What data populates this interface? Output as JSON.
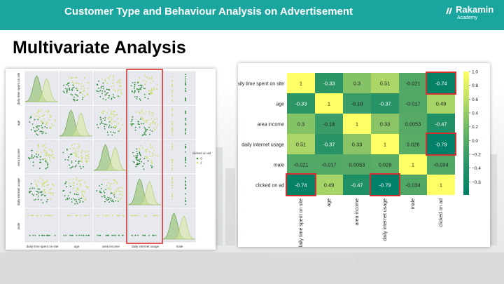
{
  "header": {
    "title": "Customer Type and Behaviour Analysis on Advertisement",
    "logo_name": "Rakamin",
    "logo_sub": "Academy"
  },
  "slide": {
    "title": "Multivariate Analysis"
  },
  "colors": {
    "header": "#1aa59f",
    "highlight": "#d32f2f",
    "pair_green": "#2e8b3a",
    "pair_light": "#c8e06a"
  },
  "pairplot": {
    "variables": [
      "daily time spent on site",
      "age",
      "area income",
      "daily internet usage",
      "male"
    ],
    "legend_title": "clicked on ad",
    "legend_items": [
      "0",
      "1"
    ]
  },
  "chart_data": {
    "type": "heatmap",
    "rows": [
      "daily time spent on site",
      "age",
      "area income",
      "daily internet usage",
      "male",
      "clicked on ad"
    ],
    "columns": [
      "daily time spent on site",
      "age",
      "area income",
      "daily internet usage",
      "male",
      "clicked on ad"
    ],
    "values": [
      [
        1,
        -0.33,
        0.3,
        0.51,
        -0.021,
        -0.74
      ],
      [
        -0.33,
        1,
        -0.18,
        -0.37,
        -0.017,
        0.49
      ],
      [
        0.3,
        -0.18,
        1,
        0.33,
        0.0053,
        -0.47
      ],
      [
        0.51,
        -0.37,
        0.33,
        1,
        0.028,
        -0.79
      ],
      [
        -0.021,
        -0.017,
        0.0053,
        0.028,
        1,
        -0.034
      ],
      [
        -0.74,
        0.49,
        -0.47,
        -0.79,
        -0.034,
        1
      ]
    ],
    "cell_labels": [
      [
        "1",
        "-0.33",
        "0.3",
        "0.51",
        "-0.021",
        "-0.74"
      ],
      [
        "-0.33",
        "1",
        "-0.18",
        "-0.37",
        "-0.017",
        "0.49"
      ],
      [
        "0.3",
        "-0.18",
        "1",
        "0.33",
        "0.0053",
        "-0.47"
      ],
      [
        "0.51",
        "-0.37",
        "0.33",
        "1",
        "0.028",
        "-0.79"
      ],
      [
        "-0.021",
        "-0.017",
        "0.0053",
        "0.028",
        "1",
        "-0.034"
      ],
      [
        "-0.74",
        "0.49",
        "-0.47",
        "-0.79",
        "-0.034",
        "1"
      ]
    ],
    "colorbar": {
      "range": [
        -0.79,
        1
      ],
      "ticks": [
        1.0,
        0.8,
        0.6,
        0.4,
        0.2,
        0.0,
        -0.2,
        -0.4,
        -0.6
      ],
      "tick_labels": [
        "1.0",
        "0.8",
        "0.6",
        "0.4",
        "0.2",
        "0.0",
        "−0.2",
        "−0.4",
        "−0.6"
      ],
      "colormap": "summer_r"
    },
    "highlighted_cells": [
      [
        0,
        5
      ],
      [
        3,
        5
      ],
      [
        5,
        0
      ],
      [
        5,
        3
      ]
    ]
  }
}
